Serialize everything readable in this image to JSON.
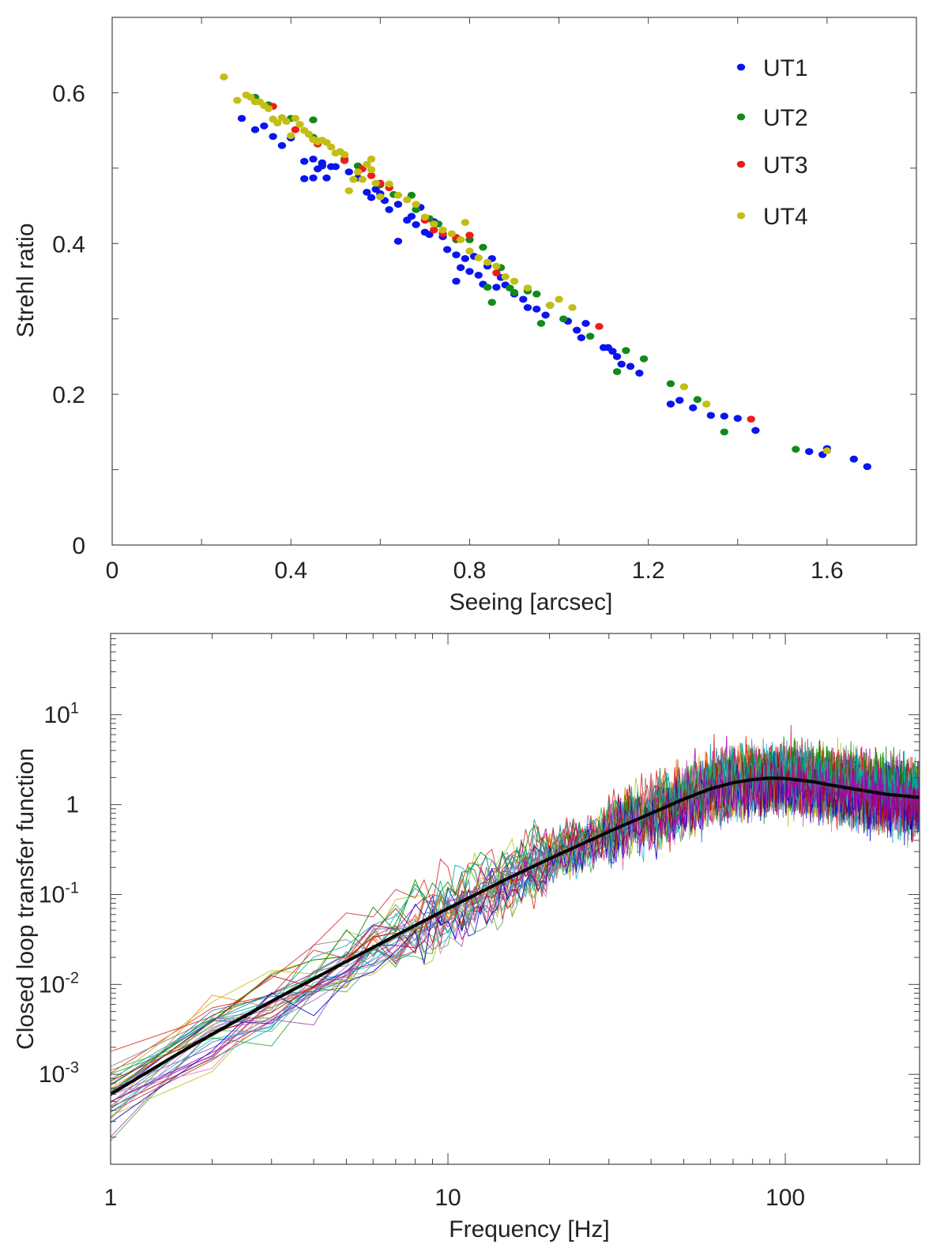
{
  "chart_data": [
    {
      "type": "scatter",
      "title": "",
      "xlabel": "Seeing [arcsec]",
      "ylabel": "Strehl ratio",
      "xlim": [
        0,
        1.8
      ],
      "ylim": [
        0,
        0.7
      ],
      "xticks": [
        0,
        0.4,
        0.8,
        1.2,
        1.6
      ],
      "xtick_labels": [
        "0",
        "0.4",
        "0.8",
        "1.2",
        "1.6"
      ],
      "yticks": [
        0,
        0.2,
        0.4,
        0.6
      ],
      "ytick_labels": [
        "0",
        "0.2",
        "0.4",
        "0.6"
      ],
      "legend_position": "top-right",
      "series": [
        {
          "name": "UT1",
          "color": "#0a14f0",
          "points": [
            [
              0.29,
              0.566
            ],
            [
              0.32,
              0.551
            ],
            [
              0.34,
              0.556
            ],
            [
              0.36,
              0.542
            ],
            [
              0.38,
              0.53
            ],
            [
              0.4,
              0.54
            ],
            [
              0.43,
              0.509
            ],
            [
              0.43,
              0.486
            ],
            [
              0.45,
              0.512
            ],
            [
              0.45,
              0.487
            ],
            [
              0.46,
              0.499
            ],
            [
              0.47,
              0.507
            ],
            [
              0.47,
              0.503
            ],
            [
              0.48,
              0.487
            ],
            [
              0.49,
              0.502
            ],
            [
              0.5,
              0.502
            ],
            [
              0.53,
              0.495
            ],
            [
              0.55,
              0.487
            ],
            [
              0.57,
              0.468
            ],
            [
              0.58,
              0.461
            ],
            [
              0.59,
              0.472
            ],
            [
              0.6,
              0.466
            ],
            [
              0.61,
              0.457
            ],
            [
              0.62,
              0.445
            ],
            [
              0.64,
              0.452
            ],
            [
              0.64,
              0.403
            ],
            [
              0.66,
              0.431
            ],
            [
              0.67,
              0.436
            ],
            [
              0.68,
              0.425
            ],
            [
              0.69,
              0.448
            ],
            [
              0.7,
              0.415
            ],
            [
              0.71,
              0.412
            ],
            [
              0.72,
              0.429
            ],
            [
              0.74,
              0.409
            ],
            [
              0.75,
              0.392
            ],
            [
              0.77,
              0.385
            ],
            [
              0.77,
              0.35
            ],
            [
              0.78,
              0.368
            ],
            [
              0.79,
              0.38
            ],
            [
              0.8,
              0.363
            ],
            [
              0.81,
              0.383
            ],
            [
              0.82,
              0.358
            ],
            [
              0.83,
              0.346
            ],
            [
              0.84,
              0.37
            ],
            [
              0.85,
              0.38
            ],
            [
              0.86,
              0.342
            ],
            [
              0.87,
              0.355
            ],
            [
              0.88,
              0.345
            ],
            [
              0.9,
              0.333
            ],
            [
              0.92,
              0.326
            ],
            [
              0.93,
              0.315
            ],
            [
              0.95,
              0.313
            ],
            [
              0.97,
              0.305
            ],
            [
              0.98,
              0.318
            ],
            [
              1.02,
              0.297
            ],
            [
              1.04,
              0.285
            ],
            [
              1.05,
              0.275
            ],
            [
              1.06,
              0.294
            ],
            [
              1.1,
              0.262
            ],
            [
              1.11,
              0.262
            ],
            [
              1.12,
              0.257
            ],
            [
              1.13,
              0.25
            ],
            [
              1.14,
              0.24
            ],
            [
              1.16,
              0.237
            ],
            [
              1.18,
              0.228
            ],
            [
              1.25,
              0.187
            ],
            [
              1.27,
              0.192
            ],
            [
              1.3,
              0.182
            ],
            [
              1.34,
              0.172
            ],
            [
              1.37,
              0.171
            ],
            [
              1.4,
              0.168
            ],
            [
              1.44,
              0.152
            ],
            [
              1.56,
              0.124
            ],
            [
              1.59,
              0.12
            ],
            [
              1.6,
              0.128
            ],
            [
              1.66,
              0.114
            ],
            [
              1.69,
              0.104
            ]
          ]
        },
        {
          "name": "UT2",
          "color": "#118a1a",
          "points": [
            [
              0.32,
              0.594
            ],
            [
              0.35,
              0.584
            ],
            [
              0.4,
              0.566
            ],
            [
              0.45,
              0.564
            ],
            [
              0.45,
              0.541
            ],
            [
              0.52,
              0.512
            ],
            [
              0.55,
              0.503
            ],
            [
              0.6,
              0.478
            ],
            [
              0.63,
              0.465
            ],
            [
              0.67,
              0.464
            ],
            [
              0.68,
              0.445
            ],
            [
              0.71,
              0.433
            ],
            [
              0.73,
              0.426
            ],
            [
              0.77,
              0.405
            ],
            [
              0.8,
              0.405
            ],
            [
              0.83,
              0.395
            ],
            [
              0.84,
              0.342
            ],
            [
              0.85,
              0.322
            ],
            [
              0.87,
              0.368
            ],
            [
              0.89,
              0.341
            ],
            [
              0.9,
              0.335
            ],
            [
              0.93,
              0.337
            ],
            [
              0.95,
              0.333
            ],
            [
              0.96,
              0.294
            ],
            [
              1.01,
              0.3
            ],
            [
              1.07,
              0.277
            ],
            [
              1.13,
              0.23
            ],
            [
              1.15,
              0.258
            ],
            [
              1.19,
              0.247
            ],
            [
              1.25,
              0.214
            ],
            [
              1.31,
              0.193
            ],
            [
              1.37,
              0.15
            ],
            [
              1.53,
              0.127
            ]
          ]
        },
        {
          "name": "UT3",
          "color": "#ee1c1c",
          "points": [
            [
              0.36,
              0.582
            ],
            [
              0.41,
              0.551
            ],
            [
              0.46,
              0.532
            ],
            [
              0.52,
              0.51
            ],
            [
              0.56,
              0.499
            ],
            [
              0.58,
              0.49
            ],
            [
              0.6,
              0.48
            ],
            [
              0.62,
              0.474
            ],
            [
              0.7,
              0.431
            ],
            [
              0.72,
              0.418
            ],
            [
              0.74,
              0.413
            ],
            [
              0.77,
              0.408
            ],
            [
              0.8,
              0.411
            ],
            [
              0.86,
              0.361
            ],
            [
              1.09,
              0.29
            ],
            [
              1.43,
              0.167
            ]
          ]
        },
        {
          "name": "UT4",
          "color": "#c2be14",
          "points": [
            [
              0.25,
              0.621
            ],
            [
              0.28,
              0.59
            ],
            [
              0.3,
              0.597
            ],
            [
              0.31,
              0.594
            ],
            [
              0.32,
              0.588
            ],
            [
              0.33,
              0.588
            ],
            [
              0.34,
              0.583
            ],
            [
              0.35,
              0.579
            ],
            [
              0.36,
              0.565
            ],
            [
              0.37,
              0.56
            ],
            [
              0.38,
              0.567
            ],
            [
              0.39,
              0.562
            ],
            [
              0.4,
              0.543
            ],
            [
              0.41,
              0.566
            ],
            [
              0.42,
              0.558
            ],
            [
              0.43,
              0.55
            ],
            [
              0.44,
              0.545
            ],
            [
              0.45,
              0.538
            ],
            [
              0.46,
              0.535
            ],
            [
              0.47,
              0.537
            ],
            [
              0.48,
              0.534
            ],
            [
              0.49,
              0.528
            ],
            [
              0.5,
              0.52
            ],
            [
              0.51,
              0.522
            ],
            [
              0.52,
              0.518
            ],
            [
              0.53,
              0.47
            ],
            [
              0.54,
              0.485
            ],
            [
              0.55,
              0.495
            ],
            [
              0.56,
              0.485
            ],
            [
              0.57,
              0.505
            ],
            [
              0.58,
              0.498
            ],
            [
              0.59,
              0.48
            ],
            [
              0.6,
              0.462
            ],
            [
              0.62,
              0.479
            ],
            [
              0.64,
              0.464
            ],
            [
              0.66,
              0.458
            ],
            [
              0.68,
              0.452
            ],
            [
              0.7,
              0.435
            ],
            [
              0.72,
              0.426
            ],
            [
              0.74,
              0.418
            ],
            [
              0.76,
              0.413
            ],
            [
              0.78,
              0.405
            ],
            [
              0.8,
              0.39
            ],
            [
              0.82,
              0.381
            ],
            [
              0.84,
              0.375
            ],
            [
              0.86,
              0.37
            ],
            [
              0.88,
              0.356
            ],
            [
              0.9,
              0.35
            ],
            [
              0.93,
              0.341
            ],
            [
              0.98,
              0.318
            ],
            [
              1.0,
              0.326
            ],
            [
              1.03,
              0.315
            ],
            [
              1.28,
              0.21
            ],
            [
              1.33,
              0.187
            ],
            [
              1.6,
              0.125
            ],
            [
              0.58,
              0.512
            ],
            [
              0.46,
              0.536
            ],
            [
              0.79,
              0.428
            ]
          ]
        }
      ]
    },
    {
      "type": "line",
      "title": "",
      "xlabel": "Frequency [Hz]",
      "ylabel": "Closed loop transfer function",
      "xscale": "log",
      "yscale": "log",
      "xlim": [
        1,
        250
      ],
      "ylim": [
        0.0001,
        80
      ],
      "xtick_labels": [
        "1",
        "10",
        "100"
      ],
      "xticks": [
        1,
        10,
        100
      ],
      "ytick_labels": [
        {
          "base": "10",
          "exp": "1"
        },
        {
          "base": "1",
          "exp": ""
        },
        {
          "base": "10",
          "exp": "-1"
        },
        {
          "base": "10",
          "exp": "-2"
        },
        {
          "base": "10",
          "exp": "-3"
        }
      ],
      "yticks": [
        10,
        1,
        0.1,
        0.01,
        0.001
      ],
      "model_curve": {
        "name": "mean",
        "color": "#000000",
        "x": [
          1,
          1.5,
          2,
          3,
          5,
          7,
          10,
          15,
          20,
          30,
          40,
          50,
          60,
          70,
          80,
          90,
          100,
          120,
          150,
          200,
          250
        ],
        "y": [
          0.0006,
          0.0015,
          0.0028,
          0.0065,
          0.018,
          0.035,
          0.07,
          0.15,
          0.25,
          0.5,
          0.8,
          1.15,
          1.5,
          1.75,
          1.9,
          1.97,
          1.95,
          1.8,
          1.55,
          1.3,
          1.2
        ]
      },
      "measured_curves": {
        "count": 36,
        "colors": [
          "#e41a1c",
          "#377eb8",
          "#4daf4a",
          "#984ea3",
          "#ff7f00",
          "#17becf",
          "#1f77b4",
          "#d62728",
          "#2ca02c",
          "#9467bd",
          "#bcbd22",
          "#e377c2",
          "#7f7f7f",
          "#0000cc",
          "#008800",
          "#aa0000",
          "#00aaaa",
          "#aa00aa"
        ],
        "description": "individual measured transfer functions scattered around the mean curve"
      }
    }
  ]
}
